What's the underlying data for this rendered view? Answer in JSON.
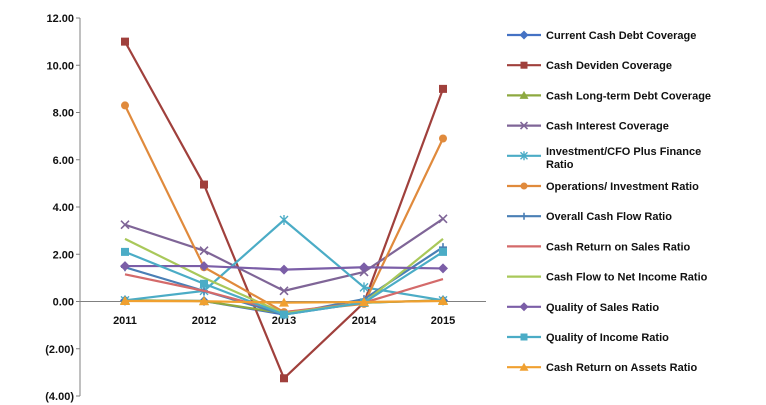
{
  "chart_data": {
    "type": "line",
    "categories": [
      "2011",
      "2012",
      "2013",
      "2014",
      "2015"
    ],
    "ylim": [
      -4,
      12
    ],
    "yticks": [
      12,
      10,
      8,
      6,
      4,
      2,
      0,
      -2,
      -4
    ],
    "ytick_labels": [
      "12.00",
      "10.00",
      "8.00",
      "6.00",
      "4.00",
      "2.00",
      "0.00",
      "(2.00)",
      "(4.00)"
    ],
    "legend_position": "right",
    "grid": false,
    "series": [
      {
        "name": "Current Cash Debt Coverage",
        "color": "#4472C4",
        "marker": "diamond",
        "values": [
          0.05,
          0.02,
          -0.55,
          -0.05,
          0.05
        ]
      },
      {
        "name": "Cash Deviden Coverage",
        "color": "#A0403C",
        "marker": "square",
        "values": [
          11.0,
          4.95,
          -3.25,
          -0.05,
          9.0
        ]
      },
      {
        "name": "Cash Long-term Debt Coverage",
        "color": "#8DA940",
        "marker": "triangle",
        "values": [
          0.05,
          0.02,
          -0.5,
          -0.05,
          0.05
        ]
      },
      {
        "name": "Cash Interest Coverage",
        "color": "#7F6597",
        "marker": "x",
        "values": [
          3.25,
          2.15,
          0.45,
          1.25,
          3.5
        ]
      },
      {
        "name": "Investment/CFO Plus Finance Ratio",
        "color": "#4BACC6",
        "marker": "star",
        "values": [
          0.05,
          0.45,
          3.45,
          0.6,
          0.05
        ]
      },
      {
        "name": "Operations/ Investment Ratio",
        "color": "#E08A3C",
        "marker": "circle",
        "values": [
          8.3,
          1.45,
          -0.45,
          -0.1,
          6.9
        ]
      },
      {
        "name": "Overall Cash Flow Ratio",
        "color": "#4A7FB5",
        "marker": "plus",
        "values": [
          1.45,
          0.45,
          -0.55,
          0.1,
          2.3
        ]
      },
      {
        "name": "Cash Return on Sales Ratio",
        "color": "#D46A6A",
        "marker": "none",
        "values": [
          1.15,
          0.45,
          -0.45,
          -0.05,
          0.95
        ]
      },
      {
        "name": "Cash Flow to Net Income Ratio",
        "color": "#A9C85A",
        "marker": "none",
        "values": [
          2.65,
          1.0,
          -0.5,
          -0.05,
          2.65
        ]
      },
      {
        "name": "Quality of Sales Ratio",
        "color": "#7B5EA7",
        "marker": "diamond",
        "values": [
          1.5,
          1.5,
          1.35,
          1.45,
          1.4
        ]
      },
      {
        "name": "Quality of Income Ratio",
        "color": "#4BACC6",
        "marker": "square",
        "values": [
          2.1,
          0.75,
          -0.55,
          -0.05,
          2.1
        ]
      },
      {
        "name": "Cash Return on Assets Ratio",
        "color": "#F0A030",
        "marker": "triangle",
        "values": [
          0.02,
          0.01,
          -0.05,
          -0.02,
          0.02
        ]
      }
    ]
  }
}
